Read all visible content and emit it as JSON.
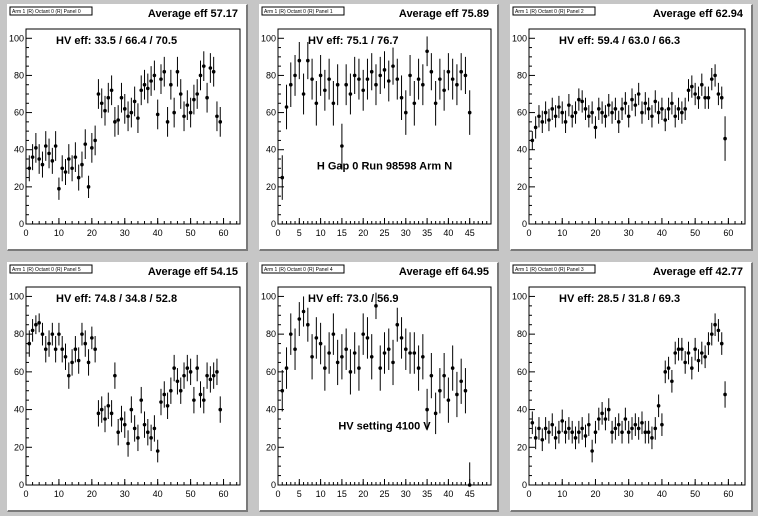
{
  "chart_data": [
    {
      "type": "scatter",
      "title": "Arm 1 (R) Octant 0 (R) Panel 0",
      "average_label": "Average eff 57.17",
      "hv_label": "HV eff:    33.5 / 66.4 / 70.5",
      "annotation": "",
      "xlim": [
        0,
        65
      ],
      "ylim": [
        0,
        105
      ],
      "xticks": [
        0,
        10,
        20,
        30,
        40,
        50,
        60
      ],
      "yticks": [
        0,
        20,
        40,
        60,
        80,
        100
      ],
      "x": [
        1,
        2,
        3,
        4,
        5,
        6,
        7,
        8,
        9,
        10,
        11,
        12,
        13,
        14,
        15,
        16,
        17,
        18,
        19,
        20,
        21,
        22,
        23,
        24,
        25,
        26,
        27,
        28,
        29,
        30,
        31,
        32,
        33,
        34,
        35,
        36,
        37,
        38,
        39,
        40,
        41,
        42,
        43,
        44,
        45,
        46,
        47,
        48,
        49,
        50,
        51,
        52,
        53,
        54,
        55,
        56,
        57,
        58,
        59
      ],
      "y": [
        30,
        36,
        41,
        35,
        32,
        42,
        38,
        34,
        42,
        19,
        30,
        28,
        35,
        30,
        36,
        25,
        32,
        43,
        20,
        41,
        45,
        70,
        65,
        61,
        68,
        72,
        55,
        56,
        68,
        62,
        58,
        60,
        66,
        57,
        72,
        75,
        73,
        77,
        80,
        59,
        78,
        82,
        55,
        75,
        60,
        82,
        70,
        58,
        64,
        60,
        67,
        70,
        80,
        85,
        68,
        84,
        82,
        58,
        55
      ],
      "err": [
        7,
        7,
        8,
        8,
        7,
        8,
        8,
        7,
        8,
        6,
        7,
        7,
        8,
        7,
        8,
        7,
        7,
        8,
        6,
        8,
        8,
        8,
        8,
        8,
        8,
        8,
        8,
        8,
        8,
        8,
        8,
        8,
        8,
        8,
        8,
        8,
        8,
        8,
        8,
        8,
        8,
        8,
        8,
        8,
        8,
        8,
        8,
        8,
        8,
        8,
        8,
        8,
        8,
        8,
        8,
        8,
        8,
        8,
        8
      ]
    },
    {
      "type": "scatter",
      "title": "Arm 1 (R) Octant 0 (R) Panel 1",
      "average_label": "Average eff 75.89",
      "hv_label": "HV eff:    75.1 / 76.7",
      "annotation": "H Gap 0 Run 98598 Arm N",
      "xlim": [
        0,
        50
      ],
      "ylim": [
        0,
        105
      ],
      "xticks": [
        0,
        5,
        10,
        15,
        20,
        25,
        30,
        35,
        40,
        45
      ],
      "yticks": [
        0,
        20,
        40,
        60,
        80,
        100
      ],
      "x": [
        1,
        2,
        3,
        4,
        5,
        6,
        7,
        8,
        9,
        10,
        11,
        12,
        13,
        14,
        15,
        16,
        17,
        18,
        19,
        20,
        21,
        22,
        23,
        24,
        25,
        26,
        27,
        28,
        29,
        30,
        31,
        32,
        33,
        34,
        35,
        36,
        37,
        38,
        39,
        40,
        41,
        42,
        43,
        44,
        45
      ],
      "y": [
        25,
        63,
        75,
        80,
        88,
        70,
        88,
        78,
        65,
        80,
        72,
        78,
        65,
        75,
        42,
        75,
        70,
        80,
        78,
        72,
        78,
        82,
        75,
        80,
        83,
        77,
        85,
        78,
        68,
        60,
        80,
        65,
        78,
        75,
        93,
        82,
        65,
        78,
        72,
        82,
        78,
        75,
        82,
        80,
        60
      ],
      "err": [
        12,
        12,
        12,
        11,
        10,
        11,
        10,
        11,
        12,
        11,
        11,
        11,
        12,
        11,
        12,
        11,
        11,
        10,
        11,
        11,
        11,
        10,
        11,
        10,
        10,
        11,
        10,
        11,
        12,
        12,
        11,
        12,
        11,
        11,
        8,
        10,
        12,
        11,
        11,
        10,
        11,
        11,
        10,
        10,
        12
      ]
    },
    {
      "type": "scatter",
      "title": "Arm 1 (R) Octant 0 (R) Panel 2",
      "average_label": "Average eff 62.94",
      "hv_label": "HV eff:    59.4 / 63.0 / 66.3",
      "annotation": "",
      "xlim": [
        0,
        65
      ],
      "ylim": [
        0,
        105
      ],
      "xticks": [
        0,
        10,
        20,
        30,
        40,
        50,
        60
      ],
      "yticks": [
        0,
        20,
        40,
        60,
        80,
        100
      ],
      "x": [
        1,
        2,
        3,
        4,
        5,
        6,
        7,
        8,
        9,
        10,
        11,
        12,
        13,
        14,
        15,
        16,
        17,
        18,
        19,
        20,
        21,
        22,
        23,
        24,
        25,
        26,
        27,
        28,
        29,
        30,
        31,
        32,
        33,
        34,
        35,
        36,
        37,
        38,
        39,
        40,
        41,
        42,
        43,
        44,
        45,
        46,
        47,
        48,
        49,
        50,
        51,
        52,
        53,
        54,
        55,
        56,
        57,
        58,
        59
      ],
      "y": [
        45,
        52,
        58,
        55,
        60,
        56,
        62,
        58,
        63,
        60,
        55,
        64,
        58,
        60,
        67,
        66,
        62,
        58,
        60,
        52,
        62,
        60,
        58,
        64,
        60,
        62,
        55,
        62,
        65,
        58,
        67,
        64,
        70,
        60,
        65,
        62,
        58,
        66,
        60,
        62,
        56,
        62,
        65,
        58,
        62,
        60,
        62,
        72,
        74,
        70,
        68,
        75,
        68,
        68,
        78,
        80,
        70,
        68,
        46
      ],
      "err": [
        5,
        6,
        6,
        6,
        6,
        6,
        6,
        6,
        6,
        6,
        6,
        6,
        6,
        6,
        6,
        6,
        6,
        6,
        6,
        6,
        6,
        6,
        6,
        6,
        6,
        6,
        6,
        6,
        6,
        6,
        6,
        6,
        6,
        6,
        6,
        6,
        6,
        6,
        6,
        6,
        6,
        6,
        6,
        6,
        6,
        6,
        6,
        6,
        6,
        6,
        6,
        6,
        6,
        6,
        6,
        6,
        6,
        6,
        12
      ]
    },
    {
      "type": "scatter",
      "title": "Arm 1 (R) Octant 0 (R) Panel 5",
      "average_label": "Average eff 54.15",
      "hv_label": "HV eff:    74.8 / 34.8 / 52.8",
      "annotation": "",
      "xlim": [
        0,
        65
      ],
      "ylim": [
        0,
        105
      ],
      "xticks": [
        0,
        10,
        20,
        30,
        40,
        50,
        60
      ],
      "yticks": [
        0,
        20,
        40,
        60,
        80,
        100
      ],
      "x": [
        1,
        2,
        3,
        4,
        5,
        6,
        7,
        8,
        9,
        10,
        11,
        12,
        13,
        14,
        15,
        16,
        17,
        18,
        19,
        20,
        21,
        22,
        23,
        24,
        25,
        26,
        27,
        28,
        29,
        30,
        31,
        32,
        33,
        34,
        35,
        36,
        37,
        38,
        39,
        40,
        41,
        42,
        43,
        44,
        45,
        46,
        47,
        48,
        49,
        50,
        51,
        52,
        53,
        54,
        55,
        56,
        57,
        58,
        59
      ],
      "y": [
        75,
        82,
        85,
        86,
        80,
        72,
        75,
        80,
        72,
        80,
        72,
        68,
        58,
        65,
        72,
        66,
        80,
        75,
        65,
        78,
        72,
        38,
        40,
        35,
        42,
        38,
        58,
        28,
        35,
        32,
        22,
        40,
        30,
        25,
        45,
        32,
        28,
        25,
        30,
        18,
        44,
        48,
        42,
        50,
        62,
        55,
        50,
        58,
        62,
        60,
        45,
        62,
        48,
        45,
        58,
        56,
        58,
        60,
        40
      ],
      "err": [
        7,
        6,
        5,
        5,
        6,
        7,
        7,
        6,
        7,
        6,
        7,
        7,
        7,
        7,
        7,
        7,
        6,
        7,
        7,
        6,
        7,
        7,
        7,
        7,
        7,
        7,
        7,
        7,
        7,
        7,
        7,
        7,
        7,
        7,
        7,
        7,
        7,
        7,
        7,
        6,
        7,
        7,
        7,
        7,
        7,
        7,
        7,
        7,
        7,
        7,
        7,
        7,
        7,
        7,
        7,
        7,
        7,
        7,
        7
      ]
    },
    {
      "type": "scatter",
      "title": "Arm 1 (R) Octant 0 (R) Panel 4",
      "average_label": "Average eff 64.95",
      "hv_label": "HV eff:    73.0 / 56.9",
      "annotation": "HV setting 4100 V",
      "xlim": [
        0,
        50
      ],
      "ylim": [
        0,
        105
      ],
      "xticks": [
        0,
        5,
        10,
        15,
        20,
        25,
        30,
        35,
        40,
        45
      ],
      "yticks": [
        0,
        20,
        40,
        60,
        80,
        100
      ],
      "x": [
        1,
        2,
        3,
        4,
        5,
        6,
        7,
        8,
        9,
        10,
        11,
        12,
        13,
        14,
        15,
        16,
        17,
        18,
        19,
        20,
        21,
        22,
        23,
        24,
        25,
        26,
        27,
        28,
        29,
        30,
        31,
        32,
        33,
        34,
        35,
        36,
        37,
        38,
        39,
        40,
        41,
        42,
        43,
        44,
        45
      ],
      "y": [
        50,
        62,
        80,
        72,
        88,
        92,
        85,
        68,
        78,
        75,
        62,
        70,
        80,
        65,
        68,
        72,
        60,
        70,
        62,
        80,
        78,
        68,
        95,
        62,
        70,
        72,
        65,
        85,
        78,
        72,
        70,
        70,
        62,
        68,
        40,
        58,
        38,
        50,
        58,
        45,
        62,
        48,
        55,
        50,
        0
      ],
      "err": [
        11,
        11,
        11,
        11,
        9,
        8,
        9,
        12,
        11,
        11,
        12,
        11,
        11,
        12,
        12,
        11,
        12,
        11,
        12,
        11,
        11,
        12,
        7,
        12,
        11,
        11,
        12,
        9,
        11,
        11,
        11,
        11,
        12,
        12,
        11,
        12,
        11,
        12,
        12,
        12,
        12,
        12,
        12,
        12,
        12
      ]
    },
    {
      "type": "scatter",
      "title": "Arm 1 (R) Octant 0 (R) Panel 3",
      "average_label": "Average eff 42.77",
      "hv_label": "HV eff:    28.5 / 31.8 / 69.3",
      "annotation": "",
      "xlim": [
        0,
        65
      ],
      "ylim": [
        0,
        105
      ],
      "xticks": [
        0,
        10,
        20,
        30,
        40,
        50,
        60
      ],
      "yticks": [
        0,
        20,
        40,
        60,
        80,
        100
      ],
      "x": [
        1,
        2,
        3,
        4,
        5,
        6,
        7,
        8,
        9,
        10,
        11,
        12,
        13,
        14,
        15,
        16,
        17,
        18,
        19,
        20,
        21,
        22,
        23,
        24,
        25,
        26,
        27,
        28,
        29,
        30,
        31,
        32,
        33,
        34,
        35,
        36,
        37,
        38,
        39,
        40,
        41,
        42,
        43,
        44,
        45,
        46,
        47,
        48,
        49,
        50,
        51,
        52,
        53,
        54,
        55,
        56,
        57,
        58,
        59
      ],
      "y": [
        33,
        25,
        30,
        24,
        30,
        28,
        32,
        25,
        28,
        34,
        28,
        30,
        28,
        25,
        28,
        30,
        26,
        32,
        18,
        28,
        35,
        38,
        35,
        40,
        28,
        30,
        32,
        28,
        35,
        28,
        30,
        32,
        30,
        33,
        28,
        28,
        25,
        30,
        42,
        32,
        60,
        62,
        55,
        70,
        72,
        72,
        65,
        70,
        62,
        72,
        66,
        70,
        68,
        75,
        80,
        85,
        82,
        75,
        48
      ],
      "err": [
        6,
        6,
        6,
        6,
        6,
        6,
        6,
        6,
        6,
        6,
        6,
        6,
        6,
        6,
        6,
        6,
        6,
        6,
        6,
        6,
        6,
        6,
        6,
        6,
        6,
        6,
        6,
        6,
        6,
        6,
        6,
        6,
        6,
        6,
        6,
        6,
        6,
        6,
        6,
        6,
        6,
        6,
        6,
        6,
        6,
        6,
        6,
        6,
        6,
        6,
        6,
        6,
        6,
        6,
        6,
        6,
        6,
        6,
        7
      ]
    }
  ]
}
